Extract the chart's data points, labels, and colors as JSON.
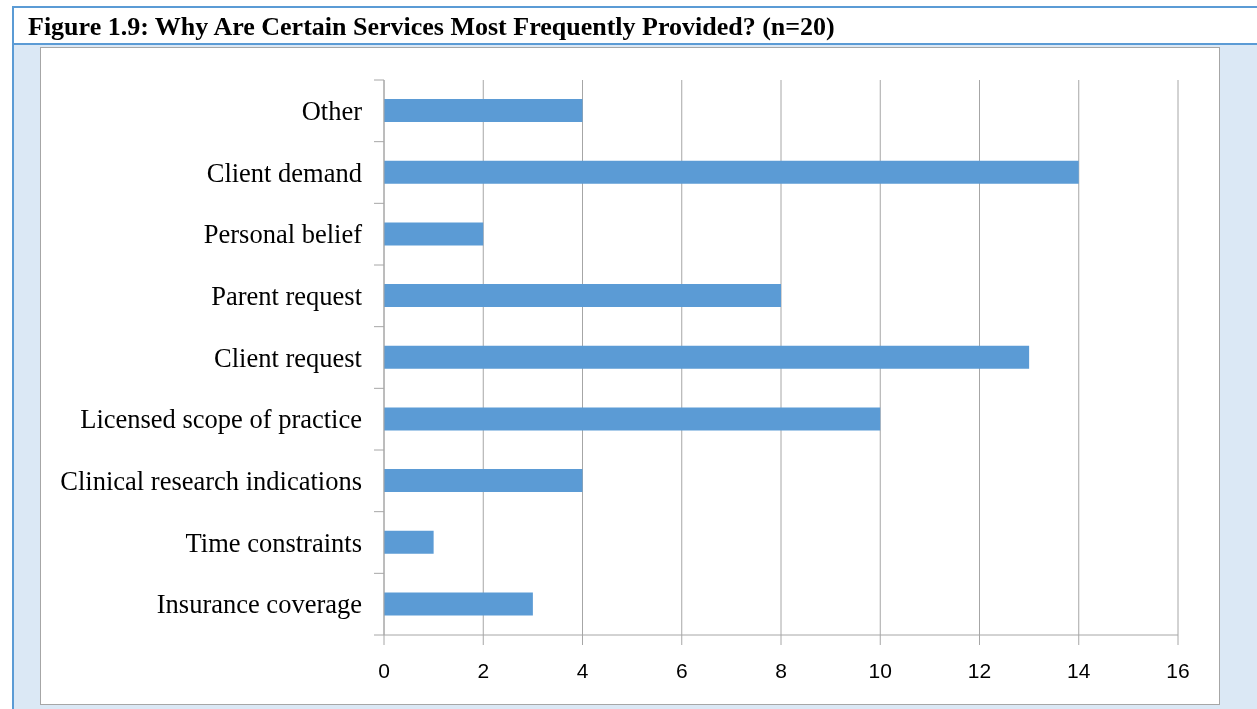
{
  "chart_data": {
    "type": "bar",
    "title": "Figure 1.9: Why Are Certain Services Most Frequently Provided? (n=20)",
    "orientation": "horizontal",
    "categories": [
      "Other",
      "Client demand",
      "Personal belief",
      "Parent request",
      "Client request",
      "Licensed scope of practice",
      "Clinical research indications",
      "Time constraints",
      "Insurance coverage"
    ],
    "values": [
      4,
      14,
      2,
      8,
      13,
      10,
      4,
      1,
      3
    ],
    "color": "#5b9bd5",
    "xlim": [
      0,
      16
    ],
    "xticks": [
      0,
      2,
      4,
      6,
      8,
      10,
      12,
      14,
      16
    ],
    "grid": "x"
  }
}
